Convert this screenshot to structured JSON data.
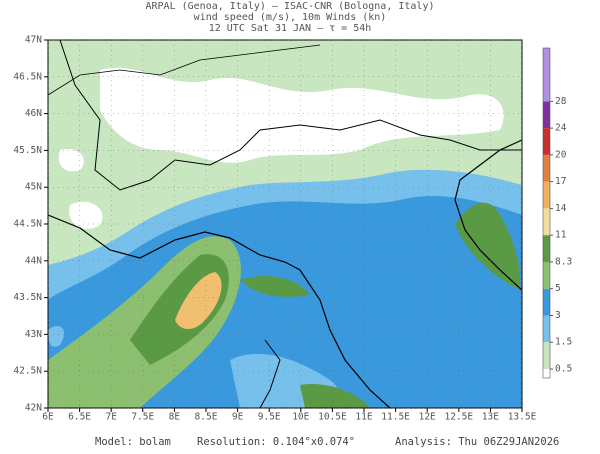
{
  "header": {
    "lines": [
      "ARPAL (Genoa, Italy)  –  ISAC-CNR (Bologna, Italy)",
      "wind speed (m/s), 10m Winds (kn)",
      "12 UTC Sat 31 JAN  –  τ = 54h"
    ]
  },
  "map": {
    "lonlim": [
      6,
      13.5
    ],
    "latlim": [
      42,
      47
    ],
    "lon_ticks": [
      {
        "value": 6,
        "label": "6E"
      },
      {
        "value": 6.5,
        "label": "6.5E"
      },
      {
        "value": 7,
        "label": "7E"
      },
      {
        "value": 7.5,
        "label": "7.5E"
      },
      {
        "value": 8,
        "label": "8E"
      },
      {
        "value": 8.5,
        "label": "8.5E"
      },
      {
        "value": 9,
        "label": "9E"
      },
      {
        "value": 9.5,
        "label": "9.5E"
      },
      {
        "value": 10,
        "label": "10E"
      },
      {
        "value": 10.5,
        "label": "10.5E"
      },
      {
        "value": 11,
        "label": "11E"
      },
      {
        "value": 11.5,
        "label": "11.5E"
      },
      {
        "value": 12,
        "label": "12E"
      },
      {
        "value": 12.5,
        "label": "12.5E"
      },
      {
        "value": 13,
        "label": "13E"
      },
      {
        "value": 13.5,
        "label": "13.5E"
      }
    ],
    "lat_ticks": [
      {
        "value": 42,
        "label": "42N"
      },
      {
        "value": 42.5,
        "label": "42.5N"
      },
      {
        "value": 43,
        "label": "43N"
      },
      {
        "value": 43.5,
        "label": "43.5N"
      },
      {
        "value": 44,
        "label": "44N"
      },
      {
        "value": 44.5,
        "label": "44.5N"
      },
      {
        "value": 45,
        "label": "45N"
      },
      {
        "value": 45.5,
        "label": "45.5N"
      },
      {
        "value": 46,
        "label": "46N"
      },
      {
        "value": 46.5,
        "label": "46.5N"
      },
      {
        "value": 47,
        "label": "47N"
      }
    ]
  },
  "colorbar": {
    "levels": [
      0.5,
      1.5,
      3,
      5,
      8.3,
      11,
      14,
      17,
      20,
      24,
      28
    ],
    "colors": [
      "#ffffff",
      "#c8e6c0",
      "#78c0ec",
      "#3a98dc",
      "#8cc070",
      "#5a9a44",
      "#f0e0a0",
      "#f0b060",
      "#e08040",
      "#c83030",
      "#8030a0",
      "#b090e0"
    ]
  },
  "footer": {
    "model": "Model: bolam",
    "resolution": "Resolution: 0.104°x0.074°",
    "analysis": "Analysis: Thu 06Z29JAN2026"
  }
}
